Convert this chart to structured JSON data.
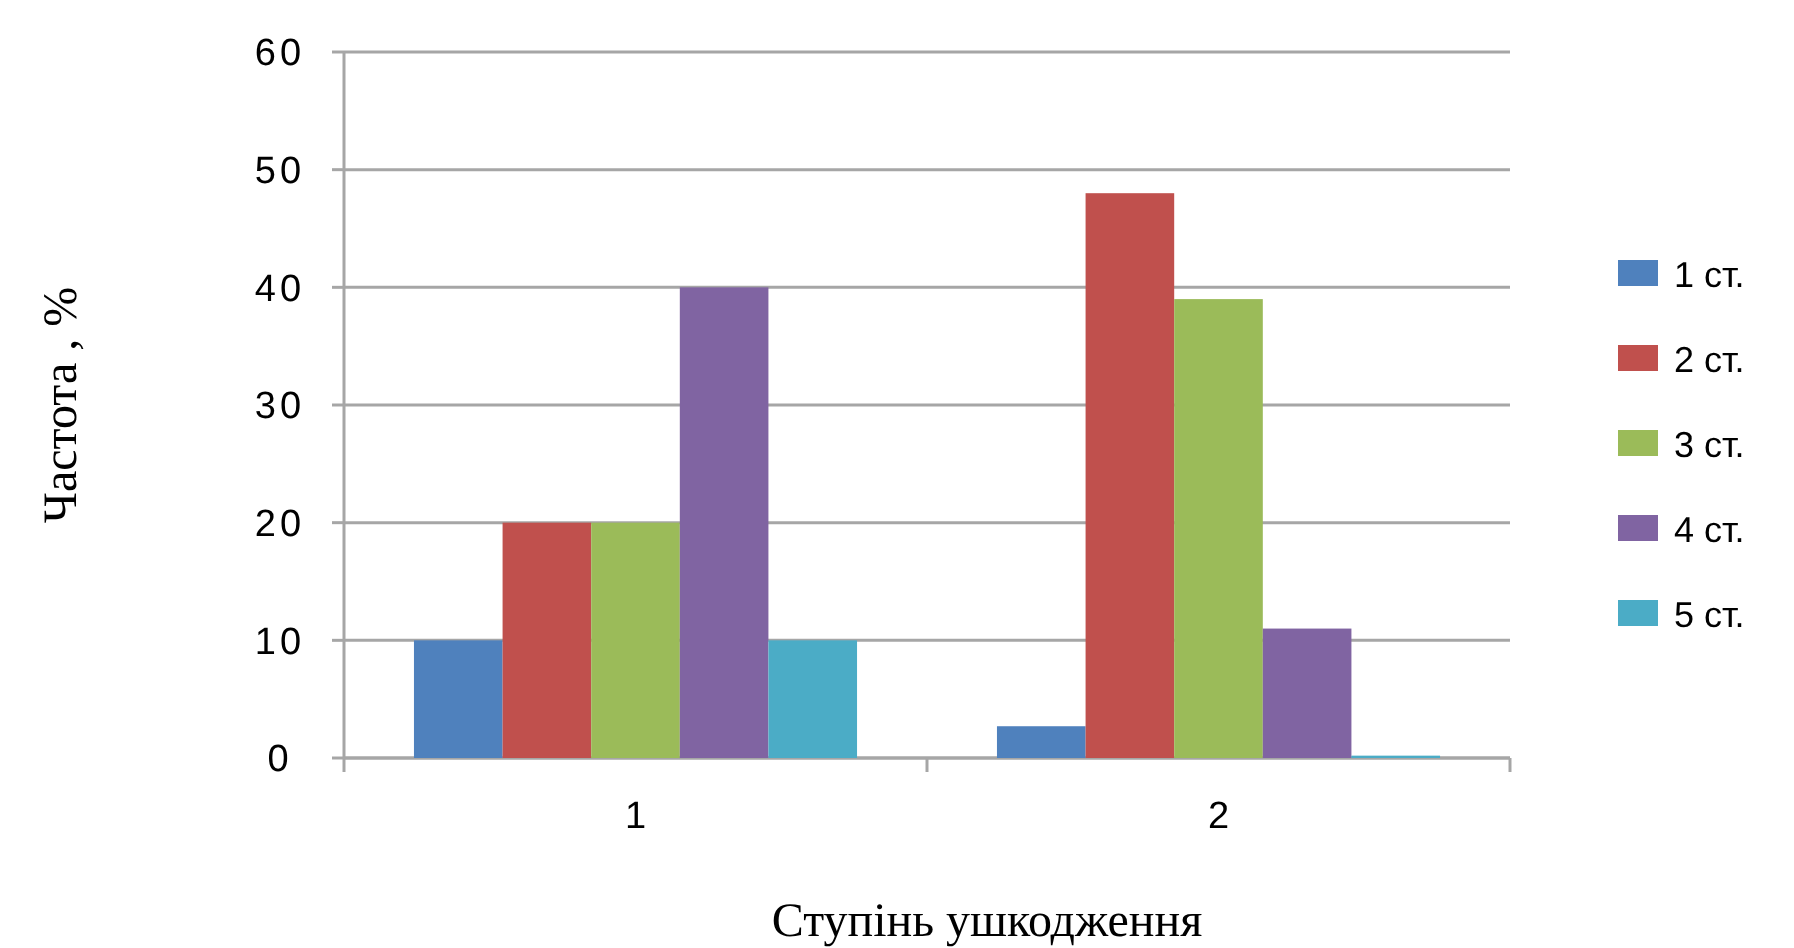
{
  "chart_data": {
    "type": "bar",
    "xlabel": "Ступінь ушкодження",
    "ylabel": "Частота , %",
    "categories": [
      "1",
      "2"
    ],
    "series": [
      {
        "name": "1 ст.",
        "color": "#4f81bd",
        "values": [
          10,
          2.7
        ]
      },
      {
        "name": "2 ст.",
        "color": "#c0504d",
        "values": [
          20,
          48
        ]
      },
      {
        "name": "3 ст.",
        "color": "#9bbb59",
        "values": [
          20,
          39
        ]
      },
      {
        "name": "4 ст.",
        "color": "#8064a2",
        "values": [
          40,
          11
        ]
      },
      {
        "name": "5 ст.",
        "color": "#4bacc6",
        "values": [
          10,
          0.2
        ]
      }
    ],
    "ylim": [
      0,
      60
    ],
    "yticks": [
      0,
      10,
      20,
      30,
      40,
      50,
      60
    ],
    "grid": "y",
    "legend": "right"
  }
}
